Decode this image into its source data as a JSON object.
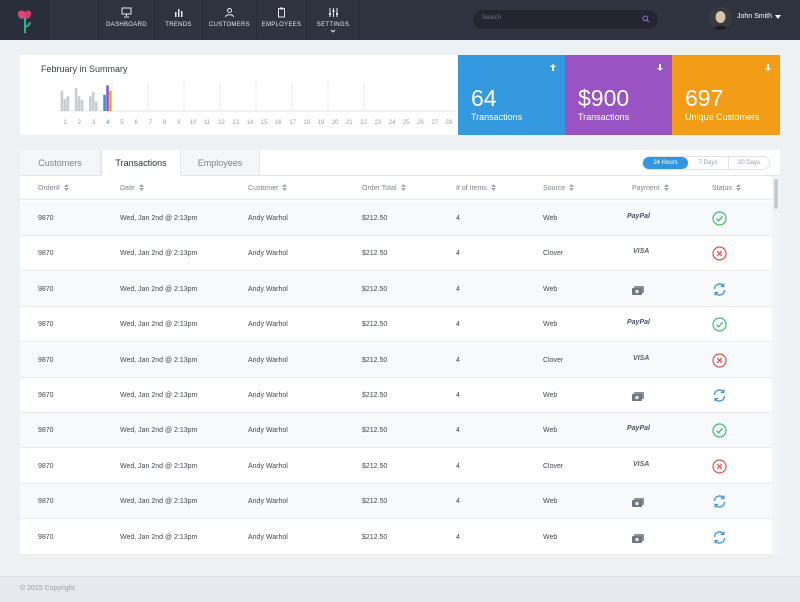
{
  "nav": {
    "items": [
      {
        "label": "DASHBOARD",
        "icon": "monitor-icon"
      },
      {
        "label": "TRENDS",
        "icon": "bar-chart-icon"
      },
      {
        "label": "CUSTOMERS",
        "icon": "person-icon"
      },
      {
        "label": "EMPLOYEES",
        "icon": "clipboard-icon"
      },
      {
        "label": "SETTINGS",
        "icon": "sliders-icon"
      }
    ]
  },
  "search": {
    "placeholder": "Search"
  },
  "user": {
    "name": "John Smith"
  },
  "summary": {
    "title": "February in Summary"
  },
  "chart_data": {
    "type": "bar",
    "x": [
      "1",
      "2",
      "3",
      "4",
      "5",
      "6",
      "7",
      "8",
      "9",
      "10",
      "11",
      "12",
      "13",
      "14",
      "15",
      "16",
      "17",
      "18",
      "19",
      "20",
      "21",
      "22",
      "23",
      "24",
      "25",
      "26",
      "27",
      "28"
    ],
    "highlight_day": "4",
    "series": [
      {
        "values": [
          0.75,
          0.85,
          0.55,
          0.6,
          0,
          0,
          0,
          0,
          0,
          0,
          0,
          0,
          0,
          0,
          0,
          0,
          0,
          0,
          0,
          0,
          0,
          0,
          0,
          0,
          0,
          0,
          0,
          0
        ]
      },
      {
        "values": [
          0.45,
          0.55,
          0.7,
          0.95,
          0,
          0,
          0,
          0,
          0,
          0,
          0,
          0,
          0,
          0,
          0,
          0,
          0,
          0,
          0,
          0,
          0,
          0,
          0,
          0,
          0,
          0,
          0,
          0
        ]
      },
      {
        "values": [
          0.55,
          0.4,
          0.35,
          0.75,
          0,
          0,
          0,
          0,
          0,
          0,
          0,
          0,
          0,
          0,
          0,
          0,
          0,
          0,
          0,
          0,
          0,
          0,
          0,
          0,
          0,
          0,
          0,
          0
        ]
      }
    ],
    "colors": {
      "past": "#c9ccd1",
      "current": [
        "#3b8fdc",
        "#8e56c8",
        "#f39c1a"
      ]
    }
  },
  "stats": [
    {
      "value": "64",
      "label": "Transactions",
      "color": "#3599e0",
      "arrow": "up"
    },
    {
      "value": "$900",
      "label": "Transactions",
      "color": "#9a53c2",
      "arrow": "down"
    },
    {
      "value": "697",
      "label": "Unique Customers",
      "color": "#f39c16",
      "arrow": "down"
    }
  ],
  "tabs": [
    "Customers",
    "Transactions",
    "Employees"
  ],
  "ranges": [
    "24 Hours",
    "7 Days",
    "30 Days"
  ],
  "table": {
    "columns": [
      "Order#",
      "Date",
      "Customer",
      "Order Total",
      "# of Items",
      "Source",
      "Payment",
      "Status"
    ],
    "rows": [
      {
        "order": "9870",
        "date": "Wed, Jan 2nd @ 2:13pm",
        "customer": "Andy Warhol",
        "total": "$212.50",
        "items": "4",
        "source": "Web",
        "payment": "paypal",
        "status": "success"
      },
      {
        "order": "9870",
        "date": "Wed, Jan 2nd @ 2:13pm",
        "customer": "Andy Warhol",
        "total": "$212.50",
        "items": "4",
        "source": "Clover",
        "payment": "visa",
        "status": "failed"
      },
      {
        "order": "9870",
        "date": "Wed, Jan 2nd @ 2:13pm",
        "customer": "Andy Warhol",
        "total": "$212.50",
        "items": "4",
        "source": "Web",
        "payment": "cash",
        "status": "pending"
      },
      {
        "order": "9870",
        "date": "Wed, Jan 2nd @ 2:13pm",
        "customer": "Andy Warhol",
        "total": "$212.50",
        "items": "4",
        "source": "Web",
        "payment": "paypal",
        "status": "success"
      },
      {
        "order": "9870",
        "date": "Wed, Jan 2nd @ 2:13pm",
        "customer": "Andy Warhol",
        "total": "$212.50",
        "items": "4",
        "source": "Clover",
        "payment": "visa",
        "status": "failed"
      },
      {
        "order": "9870",
        "date": "Wed, Jan 2nd @ 2:13pm",
        "customer": "Andy Warhol",
        "total": "$212.50",
        "items": "4",
        "source": "Web",
        "payment": "cash",
        "status": "pending"
      },
      {
        "order": "9870",
        "date": "Wed, Jan 2nd @ 2:13pm",
        "customer": "Andy Warhol",
        "total": "$212.50",
        "items": "4",
        "source": "Web",
        "payment": "paypal",
        "status": "success"
      },
      {
        "order": "9870",
        "date": "Wed, Jan 2nd @ 2:13pm",
        "customer": "Andy Warhol",
        "total": "$212.50",
        "items": "4",
        "source": "Clover",
        "payment": "visa",
        "status": "failed"
      },
      {
        "order": "9870",
        "date": "Wed, Jan 2nd @ 2:13pm",
        "customer": "Andy Warhol",
        "total": "$212.50",
        "items": "4",
        "source": "Web",
        "payment": "cash",
        "status": "pending"
      },
      {
        "order": "9870",
        "date": "Wed, Jan 2nd @ 2:13pm",
        "customer": "Andy Warhol",
        "total": "$212.50",
        "items": "4",
        "source": "Web",
        "payment": "cash",
        "status": "pending"
      }
    ]
  },
  "payment_labels": {
    "paypal": "PayPal",
    "visa": "VISA"
  },
  "footer": {
    "text": "© 2015 Copyright."
  }
}
